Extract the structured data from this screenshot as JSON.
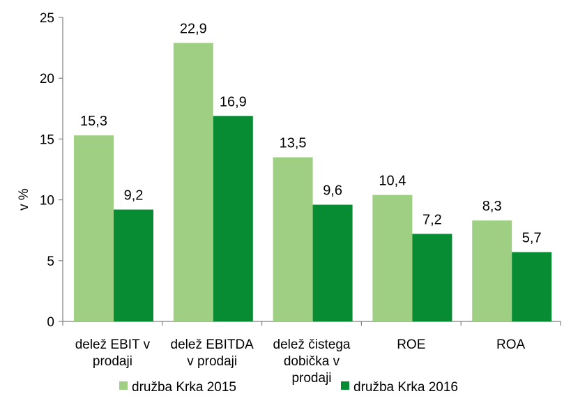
{
  "chart_data": {
    "type": "bar",
    "categories": [
      [
        "delež EBIT v",
        "prodaji"
      ],
      [
        "delež EBITDA",
        "v prodaji"
      ],
      [
        "delež čistega",
        "dobička  v",
        "prodaji"
      ],
      [
        "ROE"
      ],
      [
        "ROA"
      ]
    ],
    "series": [
      {
        "name": "družba Krka 2015",
        "values": [
          15.3,
          22.9,
          13.5,
          10.4,
          8.3
        ],
        "labels": [
          "15,3",
          "22,9",
          "13,5",
          "10,4",
          "8,3"
        ],
        "color": "#9fcf82"
      },
      {
        "name": "družba Krka 2016",
        "values": [
          9.2,
          16.9,
          9.6,
          7.2,
          5.7
        ],
        "labels": [
          "9,2",
          "16,9",
          "9,6",
          "7,2",
          "5,7"
        ],
        "color": "#078b33"
      }
    ],
    "ylabel": "v %",
    "ylim": [
      0,
      25
    ],
    "yticks": [
      0,
      5,
      10,
      15,
      20,
      25
    ],
    "grid": false,
    "legend": "bottom"
  }
}
